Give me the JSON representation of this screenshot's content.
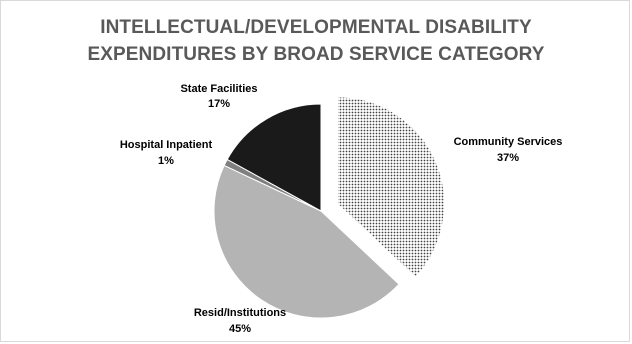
{
  "chart_data": {
    "type": "pie",
    "title_lines": [
      "INTELLECTUAL/DEVELOPMENTAL DISABILITY",
      "EXPENDITURES BY BROAD SERVICE CATEGORY"
    ],
    "slices": [
      {
        "name": "Community Services",
        "value": 37,
        "label": "37%",
        "fill": "pattern-dots",
        "exploded": true
      },
      {
        "name": "Resid/Institutions",
        "value": 45,
        "label": "45%",
        "fill": "#b4b4b4",
        "exploded": false
      },
      {
        "name": "Hospital Inpatient",
        "value": 1,
        "label": "1%",
        "fill": "#7f7f7f",
        "exploded": false
      },
      {
        "name": "State Facilities",
        "value": 17,
        "label": "17%",
        "fill": "#1a1a1a",
        "exploded": false
      }
    ],
    "start_angle_deg": 0,
    "direction": "clockwise",
    "legend": "none",
    "colors": {
      "title": "#595959",
      "pattern_background": "#ffffff",
      "pattern_dot": "#444444"
    }
  }
}
